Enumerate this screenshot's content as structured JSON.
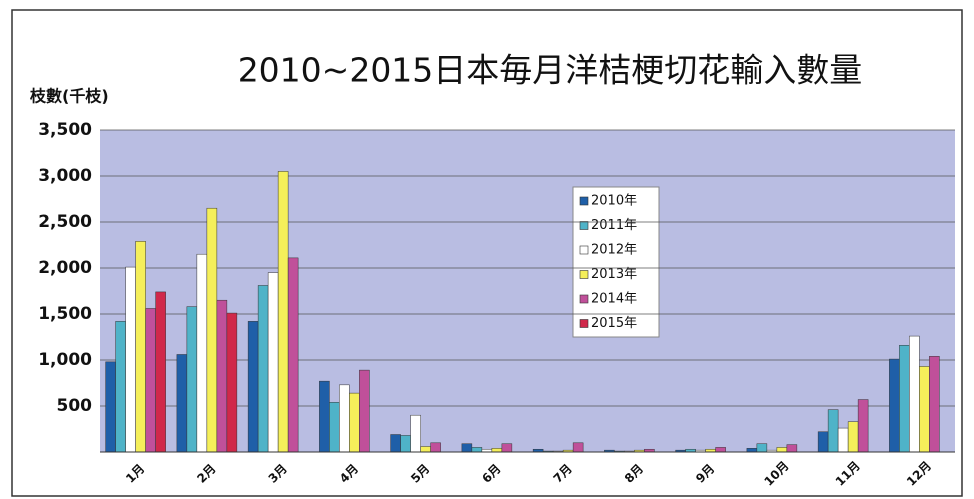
{
  "chart_data": {
    "type": "bar",
    "title": "2010~2015日本毎月洋桔梗切花輸入數量",
    "y_label": "枝數(千枝)",
    "categories": [
      "1月",
      "2月",
      "3月",
      "4月",
      "5月",
      "6月",
      "7月",
      "8月",
      "9月",
      "10月",
      "11月",
      "12月"
    ],
    "series": [
      {
        "name": "2010年",
        "color": "#1f5fa8",
        "values": [
          980,
          1060,
          1420,
          770,
          190,
          90,
          30,
          20,
          20,
          40,
          220,
          1010
        ]
      },
      {
        "name": "2011年",
        "color": "#4fb3c8",
        "values": [
          1420,
          1580,
          1810,
          540,
          180,
          50,
          10,
          10,
          30,
          90,
          460,
          1160
        ]
      },
      {
        "name": "2012年",
        "color": "#ffffff",
        "values": [
          2010,
          2150,
          1950,
          730,
          400,
          30,
          10,
          10,
          20,
          20,
          260,
          1260
        ]
      },
      {
        "name": "2013年",
        "color": "#f5ef5a",
        "values": [
          2290,
          2650,
          3050,
          640,
          60,
          40,
          20,
          20,
          30,
          50,
          330,
          930
        ]
      },
      {
        "name": "2014年",
        "color": "#c0509a",
        "values": [
          1560,
          1650,
          2110,
          890,
          100,
          90,
          100,
          30,
          50,
          80,
          570,
          1040
        ]
      },
      {
        "name": "2015年",
        "color": "#d0284a",
        "values": [
          1740,
          1510,
          null,
          null,
          null,
          null,
          null,
          null,
          null,
          null,
          null,
          null
        ]
      }
    ],
    "ylim": [
      0,
      3500
    ],
    "yticks": [
      {
        "value": 500,
        "label": "500"
      },
      {
        "value": 1000,
        "label": "1,000"
      },
      {
        "value": 1500,
        "label": "1,500"
      },
      {
        "value": 2000,
        "label": "2,000"
      },
      {
        "value": 2500,
        "label": "2,500"
      },
      {
        "value": 3000,
        "label": "3,000"
      },
      {
        "value": 3500,
        "label": "3,500"
      }
    ],
    "grid": true
  }
}
